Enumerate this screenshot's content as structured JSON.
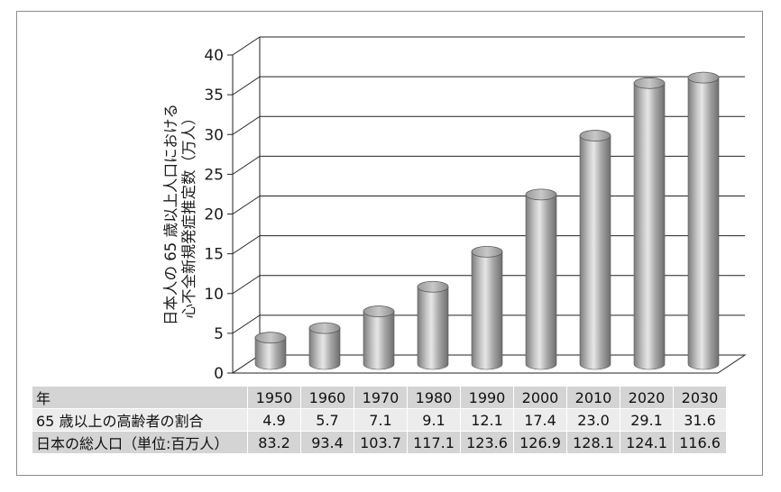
{
  "chart_data": {
    "type": "bar",
    "ylabel_lines": [
      "日本人の 65 歳以上人口における",
      "心不全新規発症推定数（万人）"
    ],
    "categories": [
      "1950",
      "1960",
      "1970",
      "1980",
      "1990",
      "2000",
      "2010",
      "2020",
      "2030"
    ],
    "values": [
      4.0,
      5.2,
      7.3,
      10.4,
      14.8,
      22.0,
      29.4,
      36.0,
      36.7
    ],
    "ylim": [
      0,
      40
    ],
    "yticks": [
      "0",
      "5",
      "10",
      "15",
      "20",
      "25",
      "30",
      "35",
      "40"
    ],
    "grid": true,
    "bar_style": "3d-cylinder",
    "bar_color": "#a8a8a8"
  },
  "table": {
    "rows": [
      {
        "label": "年",
        "values": [
          "1950",
          "1960",
          "1970",
          "1980",
          "1990",
          "2000",
          "2010",
          "2020",
          "2030"
        ]
      },
      {
        "label": "65 歳以上の高齢者の割合",
        "values": [
          "4.9",
          "5.7",
          "7.1",
          "9.1",
          "12.1",
          "17.4",
          "23.0",
          "29.1",
          "31.6"
        ]
      },
      {
        "label": "日本の総人口（単位:百万人）",
        "values": [
          "83.2",
          "93.4",
          "103.7",
          "117.1",
          "123.6",
          "126.9",
          "128.1",
          "124.1",
          "116.6"
        ]
      }
    ]
  }
}
